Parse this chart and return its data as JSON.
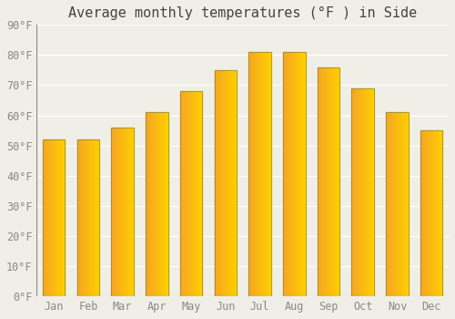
{
  "title": "Average monthly temperatures (°F ) in Side",
  "months": [
    "Jan",
    "Feb",
    "Mar",
    "Apr",
    "May",
    "Jun",
    "Jul",
    "Aug",
    "Sep",
    "Oct",
    "Nov",
    "Dec"
  ],
  "values": [
    52,
    52,
    56,
    61,
    68,
    75,
    81,
    81,
    76,
    69,
    61,
    55
  ],
  "ylim": [
    0,
    90
  ],
  "yticks": [
    0,
    10,
    20,
    30,
    40,
    50,
    60,
    70,
    80,
    90
  ],
  "ytick_labels": [
    "0°F",
    "10°F",
    "20°F",
    "30°F",
    "40°F",
    "50°F",
    "60°F",
    "70°F",
    "80°F",
    "90°F"
  ],
  "bar_color_left": "#F5A623",
  "bar_color_right": "#FFD000",
  "background_color": "#F0EFE7",
  "grid_color": "#FFFFFF",
  "title_fontsize": 11,
  "tick_fontsize": 8.5,
  "font_family": "monospace"
}
